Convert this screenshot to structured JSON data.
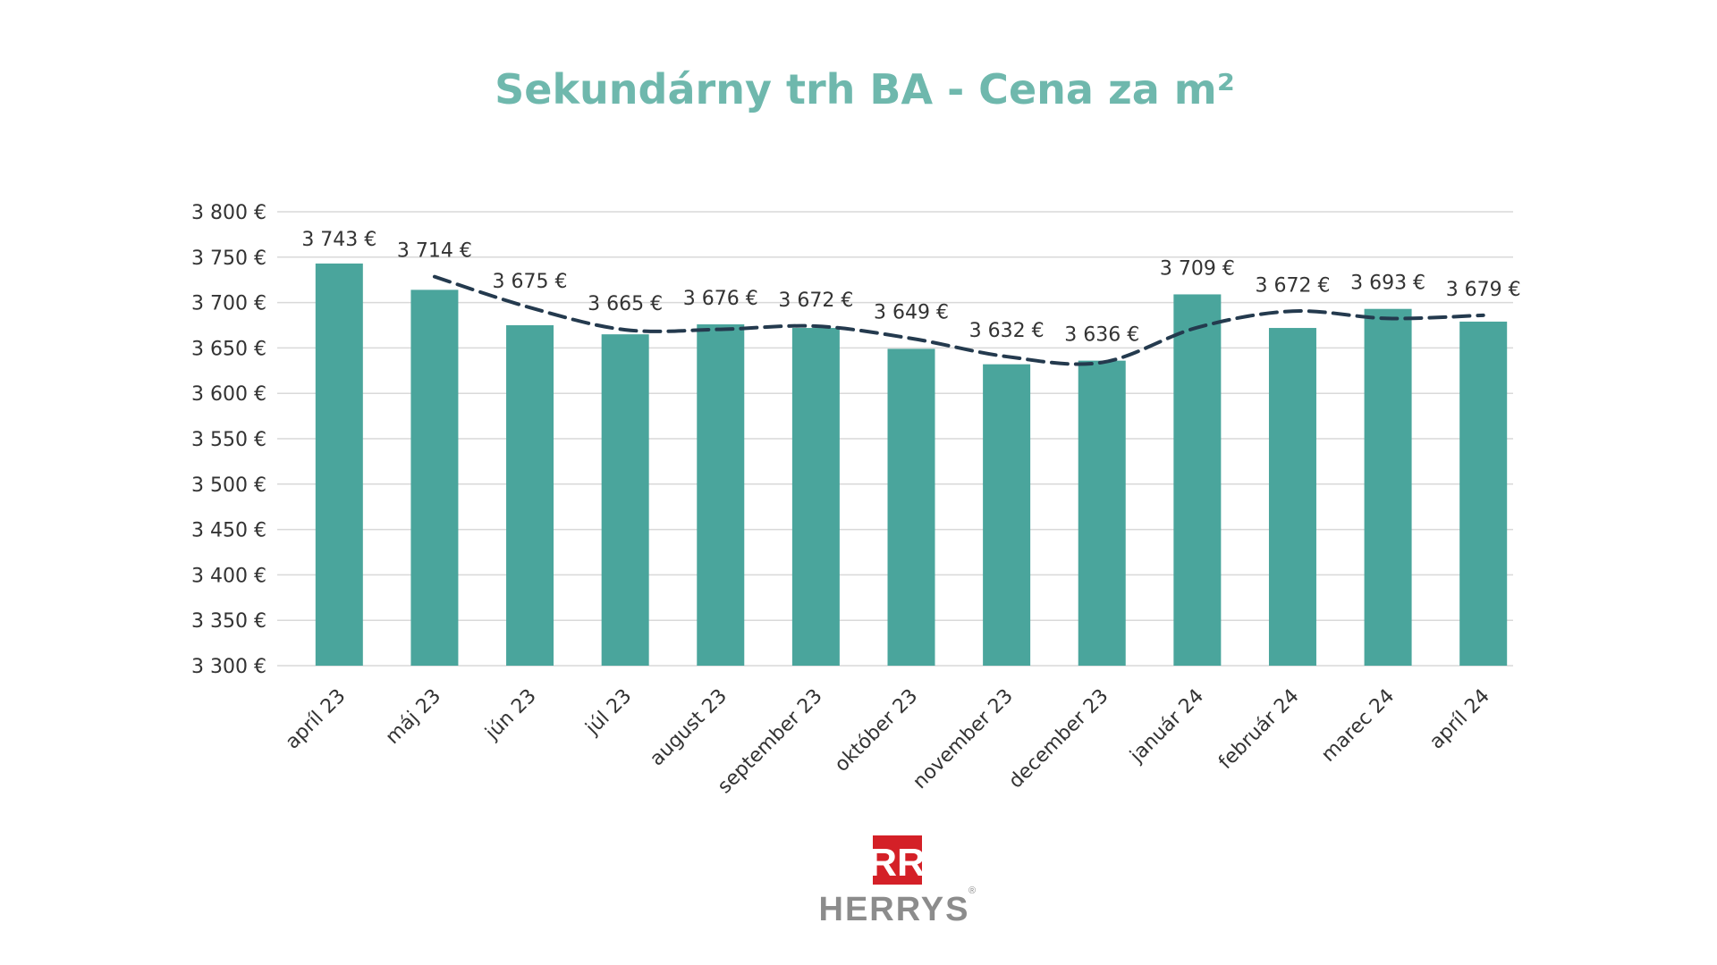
{
  "chart_data": {
    "type": "bar",
    "title": "Sekundárny trh BA - Cena za m²",
    "categories": [
      "apríl 23",
      "máj 23",
      "jún 23",
      "júl 23",
      "august 23",
      "september 23",
      "október 23",
      "november 23",
      "december 23",
      "január 24",
      "február 24",
      "marec 24",
      "apríl 24"
    ],
    "values": [
      3743,
      3714,
      3675,
      3665,
      3676,
      3672,
      3649,
      3632,
      3636,
      3709,
      3672,
      3693,
      3679
    ],
    "data_labels": [
      "3 743 €",
      "3 714 €",
      "3 675 €",
      "3 665 €",
      "3 676 €",
      "3 672 €",
      "3 649 €",
      "3 632 €",
      "3 636 €",
      "3 709 €",
      "3 672 €",
      "3 693 €",
      "3 679 €"
    ],
    "trendline": {
      "style": "dashed",
      "type": "moving average",
      "values": [
        null,
        3728.5,
        3694.5,
        3670,
        3670.5,
        3674,
        3660.5,
        3640.5,
        3634,
        3672.5,
        3690.5,
        3682.5,
        3686
      ]
    },
    "ylim": [
      3300,
      3800
    ],
    "yticks": [
      3300,
      3350,
      3400,
      3450,
      3500,
      3550,
      3600,
      3650,
      3700,
      3750,
      3800
    ],
    "ytick_labels": [
      "3 300 €",
      "3 350 €",
      "3 400 €",
      "3 450 €",
      "3 500 €",
      "3 550 €",
      "3 600 €",
      "3 650 €",
      "3 700 €",
      "3 750 €",
      "3 800 €"
    ],
    "xlabel": "",
    "ylabel": "",
    "grid": true,
    "legend": "none",
    "colors": {
      "bar": "#4aa59c",
      "trendline": "#243a4e",
      "title": "#6fb8ad",
      "grid": "#d9d9d9"
    }
  },
  "logo": {
    "brand": "HERRYS",
    "mark_letters": "RR",
    "registered": "®",
    "mark_color": "#d42027"
  }
}
